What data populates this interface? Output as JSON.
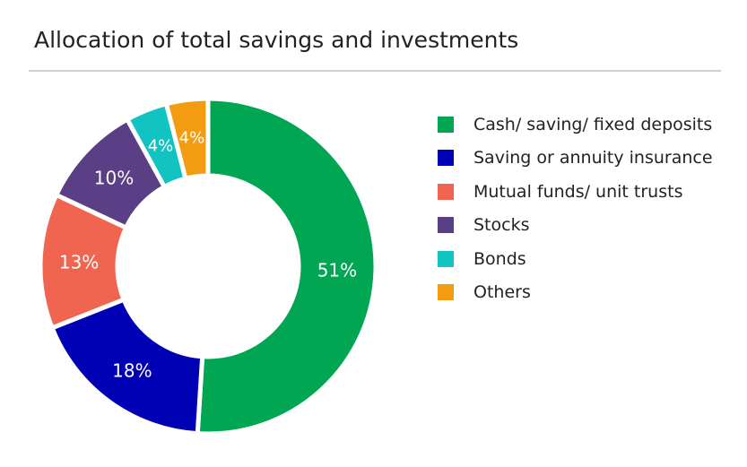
{
  "chart_data": {
    "type": "pie",
    "title": "Allocation of total savings and investments",
    "categories": [
      "Cash/ saving/ fixed deposits",
      "Saving or annuity insurance",
      "Mutual funds/ unit trusts",
      "Stocks",
      "Bonds",
      "Others"
    ],
    "values": [
      51,
      18,
      13,
      10,
      4,
      4
    ],
    "labels": [
      "51%",
      "18%",
      "13%",
      "10%",
      "4%",
      "4%"
    ],
    "colors": [
      "#00a651",
      "#0000b4",
      "#ef6550",
      "#5b3f86",
      "#12c4c1",
      "#f39c12"
    ],
    "legend": "right"
  }
}
